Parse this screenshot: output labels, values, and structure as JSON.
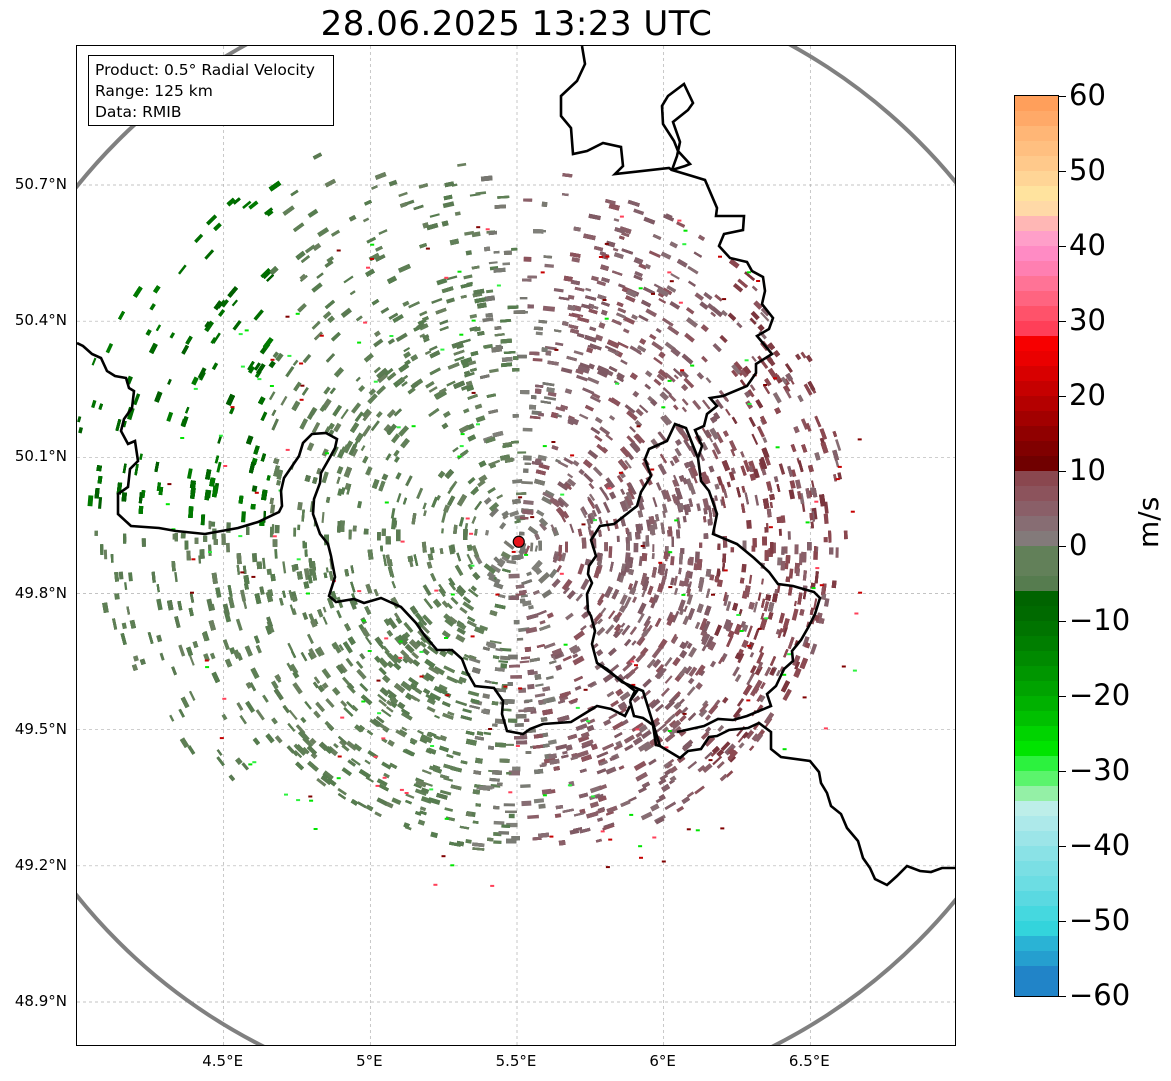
{
  "title": "28.06.2025 13:23 UTC",
  "info": {
    "product": "Product: 0.5° Radial Velocity",
    "range": "Range: 125 km",
    "data": "Data: RMIB"
  },
  "map": {
    "lon_range": [
      4.0,
      7.0
    ],
    "lat_range": [
      48.8,
      51.0
    ],
    "lat_ticks": [
      {
        "value": 50.7,
        "label": "50.7°N"
      },
      {
        "value": 50.4,
        "label": "50.4°N"
      },
      {
        "value": 50.1,
        "label": "50.1°N"
      },
      {
        "value": 49.8,
        "label": "49.8°N"
      },
      {
        "value": 49.5,
        "label": "49.5°N"
      },
      {
        "value": 49.2,
        "label": "49.2°N"
      },
      {
        "value": 48.9,
        "label": "48.9°N"
      }
    ],
    "lon_ticks": [
      {
        "value": 4.5,
        "label": "4.5°E"
      },
      {
        "value": 5.0,
        "label": "5°E"
      },
      {
        "value": 5.5,
        "label": "5.5°E"
      },
      {
        "value": 6.0,
        "label": "6°E"
      },
      {
        "value": 6.5,
        "label": "6.5°E"
      }
    ],
    "radar_site": {
      "lon": 5.506,
      "lat": 49.914
    },
    "range_ring_color": "#808080",
    "site_marker_color": "#e8141b",
    "border_color": "#000000",
    "grid_color": "#b0b0b0"
  },
  "colorbar": {
    "unit": "m/s",
    "min": -60,
    "max": 60,
    "ticks": [
      {
        "value": 60,
        "label": "60"
      },
      {
        "value": 50,
        "label": "50"
      },
      {
        "value": 40,
        "label": "40"
      },
      {
        "value": 30,
        "label": "30"
      },
      {
        "value": 20,
        "label": "20"
      },
      {
        "value": 10,
        "label": "10"
      },
      {
        "value": 0,
        "label": "0"
      },
      {
        "value": -10,
        "label": "−10"
      },
      {
        "value": -20,
        "label": "−20"
      },
      {
        "value": -30,
        "label": "−30"
      },
      {
        "value": -40,
        "label": "−40"
      },
      {
        "value": -50,
        "label": "−50"
      },
      {
        "value": -60,
        "label": "−60"
      }
    ],
    "segments": [
      {
        "from": 58,
        "to": 60,
        "color": "#ff9f5b"
      },
      {
        "from": 56,
        "to": 58,
        "color": "#ffa968"
      },
      {
        "from": 54,
        "to": 56,
        "color": "#ffb676"
      },
      {
        "from": 52,
        "to": 54,
        "color": "#ffbf80"
      },
      {
        "from": 50,
        "to": 52,
        "color": "#ffc98b"
      },
      {
        "from": 48,
        "to": 50,
        "color": "#ffd596"
      },
      {
        "from": 46,
        "to": 48,
        "color": "#ffe39e"
      },
      {
        "from": 44,
        "to": 46,
        "color": "#ffd9a7"
      },
      {
        "from": 42,
        "to": 44,
        "color": "#ffb7b5"
      },
      {
        "from": 40,
        "to": 42,
        "color": "#ff9fc9"
      },
      {
        "from": 38,
        "to": 40,
        "color": "#ff8bc4"
      },
      {
        "from": 36,
        "to": 38,
        "color": "#ff7fb1"
      },
      {
        "from": 34,
        "to": 36,
        "color": "#ff7396"
      },
      {
        "from": 32,
        "to": 34,
        "color": "#ff6480"
      },
      {
        "from": 30,
        "to": 32,
        "color": "#ff526a"
      },
      {
        "from": 28,
        "to": 30,
        "color": "#ff3f58"
      },
      {
        "from": 26,
        "to": 28,
        "color": "#f70000"
      },
      {
        "from": 24,
        "to": 26,
        "color": "#ea0000"
      },
      {
        "from": 22,
        "to": 24,
        "color": "#d80000"
      },
      {
        "from": 20,
        "to": 22,
        "color": "#c60000"
      },
      {
        "from": 18,
        "to": 20,
        "color": "#b40000"
      },
      {
        "from": 16,
        "to": 18,
        "color": "#a20000"
      },
      {
        "from": 14,
        "to": 16,
        "color": "#900000"
      },
      {
        "from": 12,
        "to": 14,
        "color": "#800000"
      },
      {
        "from": 10,
        "to": 12,
        "color": "#700000"
      },
      {
        "from": 8,
        "to": 10,
        "color": "#8a474f"
      },
      {
        "from": 6,
        "to": 8,
        "color": "#8c535c"
      },
      {
        "from": 4,
        "to": 6,
        "color": "#8a5f68"
      },
      {
        "from": 2,
        "to": 4,
        "color": "#876d73"
      },
      {
        "from": 0,
        "to": 2,
        "color": "#837a7a"
      },
      {
        "from": -2,
        "to": 0,
        "color": "#6f8068"
      },
      {
        "from": -4,
        "to": 0,
        "color": "#628059"
      },
      {
        "from": -6,
        "to": -4,
        "color": "#567c4f"
      },
      {
        "from": -8,
        "to": -6,
        "color": "#006400"
      },
      {
        "from": -10,
        "to": -8,
        "color": "#006a00"
      },
      {
        "from": -12,
        "to": -10,
        "color": "#007400"
      },
      {
        "from": -14,
        "to": -12,
        "color": "#007e00"
      },
      {
        "from": -16,
        "to": -14,
        "color": "#008a00"
      },
      {
        "from": -18,
        "to": -16,
        "color": "#009600"
      },
      {
        "from": -20,
        "to": -18,
        "color": "#00a300"
      },
      {
        "from": -22,
        "to": -20,
        "color": "#00b100"
      },
      {
        "from": -24,
        "to": -22,
        "color": "#00c000"
      },
      {
        "from": -26,
        "to": -24,
        "color": "#00d400"
      },
      {
        "from": -28,
        "to": -26,
        "color": "#00e400"
      },
      {
        "from": -30,
        "to": -28,
        "color": "#2cf23e"
      },
      {
        "from": -32,
        "to": -30,
        "color": "#5bf46c"
      },
      {
        "from": -34,
        "to": -32,
        "color": "#94f0a6"
      },
      {
        "from": -36,
        "to": -34,
        "color": "#bdeee9"
      },
      {
        "from": -38,
        "to": -36,
        "color": "#ade9ea"
      },
      {
        "from": -40,
        "to": -38,
        "color": "#9ce5e8"
      },
      {
        "from": -42,
        "to": -40,
        "color": "#8ae2e6"
      },
      {
        "from": -44,
        "to": -42,
        "color": "#7adfe4"
      },
      {
        "from": -46,
        "to": -44,
        "color": "#6cdde3"
      },
      {
        "from": -48,
        "to": -46,
        "color": "#5ad9e1"
      },
      {
        "from": -50,
        "to": -48,
        "color": "#45d8df"
      },
      {
        "from": -52,
        "to": -50,
        "color": "#33d4dc"
      },
      {
        "from": -54,
        "to": -52,
        "color": "#2ab3d5"
      },
      {
        "from": -56,
        "to": -54,
        "color": "#259fcf"
      },
      {
        "from": -60,
        "to": -56,
        "color": "#2184c8"
      }
    ]
  }
}
